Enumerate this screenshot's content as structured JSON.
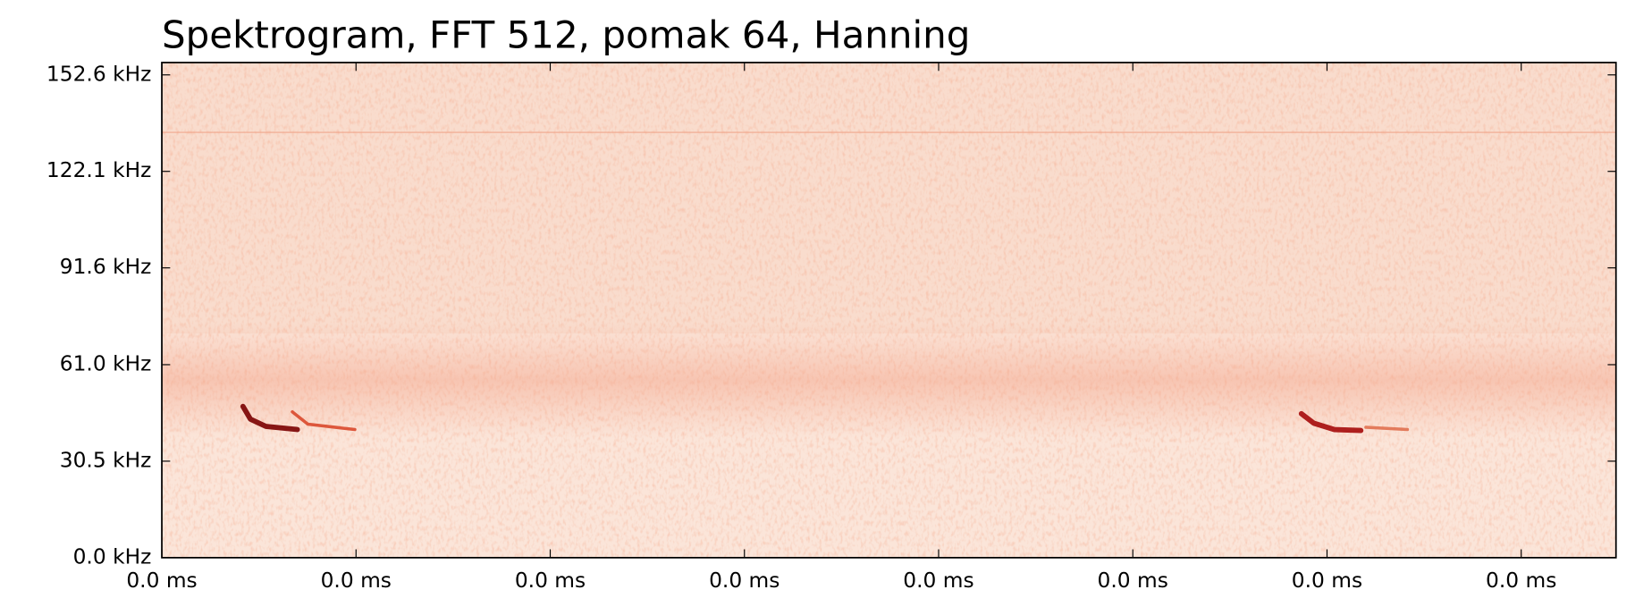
{
  "chart_data": {
    "type": "spectrogram",
    "title": "Spektrogram, FFT 512, pomak 64, Hanning",
    "xlim": [
      0,
      0.03744
    ],
    "xticks": [
      {
        "value": 0,
        "label": "0.0 ms"
      },
      {
        "value": 0.005,
        "label": "0.0 ms"
      },
      {
        "value": 0.01,
        "label": "0.0 ms"
      },
      {
        "value": 0.015,
        "label": "0.0 ms"
      },
      {
        "value": 0.02,
        "label": "0.0 ms"
      },
      {
        "value": 0.025,
        "label": "0.0 ms"
      },
      {
        "value": 0.03,
        "label": "0.0 ms"
      },
      {
        "value": 0.035,
        "label": "0.0 ms"
      }
    ],
    "ylim": [
      0,
      156.5
    ],
    "yticks": [
      {
        "value": 0,
        "label": "0.0 kHz"
      },
      {
        "value": 30.5,
        "label": "30.5 kHz"
      },
      {
        "value": 61,
        "label": "61.0 kHz"
      },
      {
        "value": 91.6,
        "label": "91.6 kHz"
      },
      {
        "value": 122.1,
        "label": "122.1 kHz"
      },
      {
        "value": 152.6,
        "label": "152.6 kHz"
      }
    ],
    "series": [
      {
        "color": "#7a0000",
        "x": [
          0.00209,
          0.00228,
          0.00268,
          0.00349
        ],
        "values": [
          47.8,
          43.8,
          41.5,
          40.5
        ]
      },
      {
        "color": "#d9482b",
        "x": [
          0.00336,
          0.00376,
          0.00497
        ],
        "values": [
          46.1,
          42.2,
          40.5
        ]
      },
      {
        "color": "#a50a0a",
        "x": [
          0.02934,
          0.02966,
          0.03019,
          0.03087
        ],
        "values": [
          45.5,
          42.5,
          40.5,
          40.2
        ]
      },
      {
        "color": "#e0704f",
        "x": [
          0.031,
          0.03207
        ],
        "values": [
          41.2,
          40.5
        ]
      }
    ]
  }
}
